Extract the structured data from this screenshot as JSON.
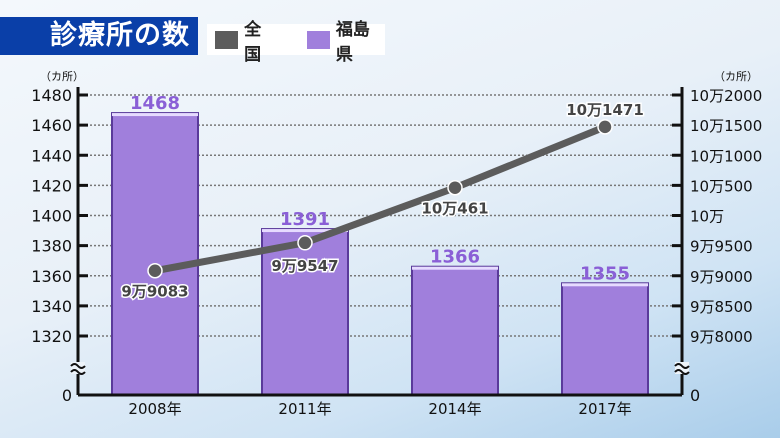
{
  "title": "診療所の数",
  "legend": [
    {
      "label": "全 国",
      "color": "#5c5c5c"
    },
    {
      "label": "福島県",
      "color": "#a07fdc"
    }
  ],
  "chart_data": {
    "type": "bar+line",
    "categories": [
      "2008年",
      "2011年",
      "2014年",
      "2017年"
    ],
    "series": [
      {
        "name": "福島県",
        "type": "bar",
        "axis": "left",
        "values": [
          1468,
          1391,
          1366,
          1355
        ],
        "labels": [
          "1468",
          "1391",
          "1366",
          "1355"
        ],
        "color": "#a07fdc"
      },
      {
        "name": "全 国",
        "type": "line",
        "axis": "right",
        "values": [
          99083,
          99547,
          100461,
          101471
        ],
        "labels": [
          "9万9083",
          "9万9547",
          "10万461",
          "10万1471"
        ],
        "color": "#5c5c5c"
      }
    ],
    "left_axis": {
      "unit": "（カ所）",
      "range": [
        1320,
        1480
      ],
      "ticks": [
        1480,
        1460,
        1440,
        1420,
        1400,
        1380,
        1360,
        1340,
        1320
      ],
      "tick_labels": [
        "1480",
        "1460",
        "1440",
        "1420",
        "1400",
        "1380",
        "1360",
        "1340",
        "1320"
      ],
      "zero_label": "0",
      "break": true
    },
    "right_axis": {
      "unit": "（カ所）",
      "range": [
        98000,
        102000
      ],
      "ticks": [
        102000,
        101500,
        101000,
        100500,
        100000,
        99500,
        99000,
        98500,
        98000
      ],
      "tick_labels": [
        "10万2000",
        "10万1500",
        "10万1000",
        "10万500",
        "10万",
        "9万9500",
        "9万9000",
        "9万8500",
        "9万8000"
      ],
      "zero_label": "0",
      "break": true
    },
    "grid": true
  }
}
